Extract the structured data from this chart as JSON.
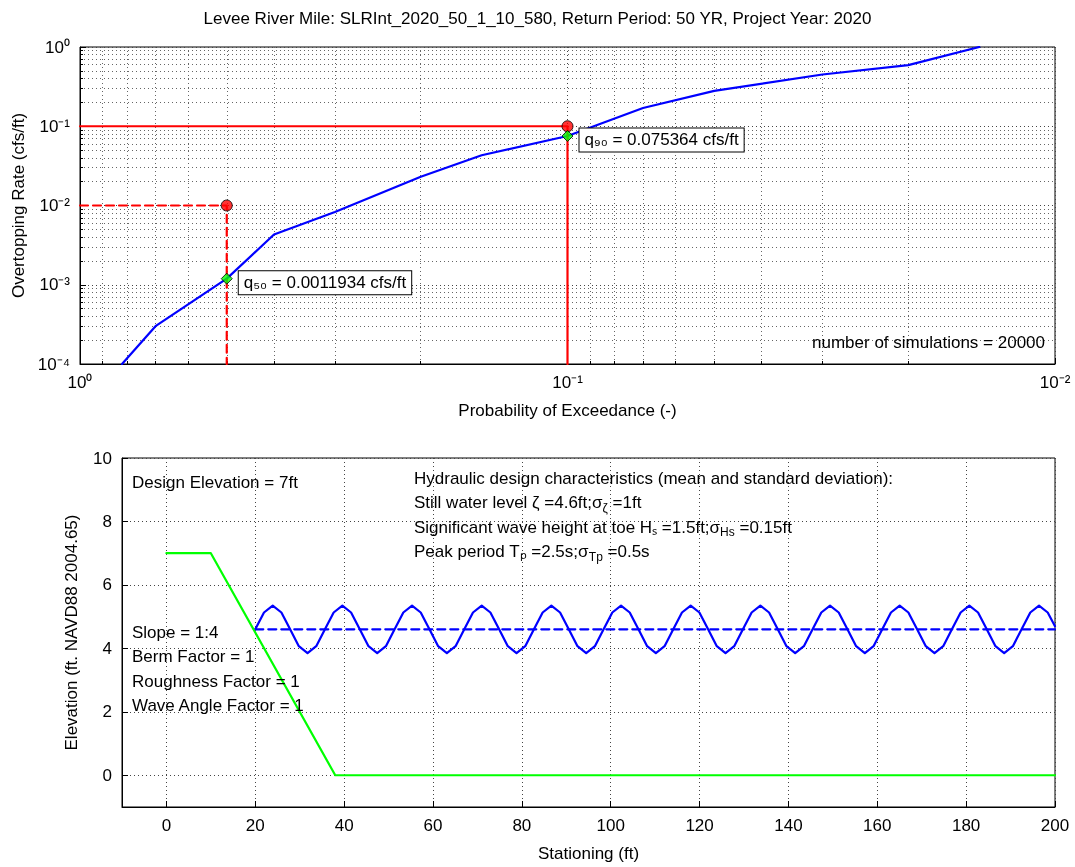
{
  "chart_data": [
    {
      "type": "line",
      "title": "Levee River Mile: SLRInt_2020_50_1_10_580, Return Period: 50 YR, Project Year: 2020",
      "xlabel": "Probability of Exceedance (-)",
      "ylabel": "Overtopping Rate (cfs/ft)",
      "log": "xy",
      "grid": true,
      "xlim": [
        1,
        0.01
      ],
      "xticks": [
        {
          "value": 1,
          "label": "10⁰"
        },
        {
          "value": 0.1,
          "label": "10⁻¹"
        },
        {
          "value": 0.01,
          "label": "10⁻²"
        }
      ],
      "ylim": [
        0.0001,
        1
      ],
      "yticks": [
        {
          "value": 0.0001,
          "label": "10⁻⁴"
        },
        {
          "value": 0.001,
          "label": "10⁻³"
        },
        {
          "value": 0.01,
          "label": "10⁻²"
        },
        {
          "value": 0.1,
          "label": "10⁻¹"
        },
        {
          "value": 1,
          "label": "10⁰"
        }
      ],
      "series": [
        {
          "type": "line",
          "color": "#0000ff",
          "marker": "none",
          "line_style": "solid",
          "x": [
            0.82,
            0.7,
            0.5,
            0.4,
            0.3,
            0.2,
            0.15,
            0.1,
            0.07,
            0.05,
            0.03,
            0.02,
            0.0143
          ],
          "values": [
            0.0001,
            0.0003,
            0.0011934,
            0.0043,
            0.0083,
            0.023,
            0.043,
            0.075364,
            0.17,
            0.28,
            0.45,
            0.59,
            1
          ]
        },
        {
          "type": "line",
          "color": "#ff0000",
          "marker": "none",
          "line_style": "solid",
          "x": [
            1,
            0.1,
            0.1
          ],
          "values": [
            0.1,
            0.1,
            0.0001
          ]
        },
        {
          "type": "line",
          "color": "#ff0000",
          "marker": "none",
          "line_style": "dashed",
          "x": [
            1,
            0.5,
            0.5
          ],
          "values": [
            0.01,
            0.01,
            0.0001
          ]
        },
        {
          "type": "scatter",
          "color": "#ff0000",
          "marker": "circle",
          "x": [
            0.5,
            0.1
          ],
          "values": [
            0.01,
            0.1
          ]
        },
        {
          "type": "scatter",
          "color": "#00ff00",
          "marker": "diamond",
          "x": [
            0.5,
            0.1
          ],
          "values": [
            0.0011934,
            0.075364
          ]
        }
      ],
      "annotations": [
        {
          "text": "q₅₀ = 0.0011934 cfs/ft",
          "x": 0.5,
          "y": 0.0011934
        },
        {
          "text": "q₉₀ = 0.075364 cfs/ft",
          "x": 0.1,
          "y": 0.075364
        },
        "number of simulations = 20000"
      ]
    },
    {
      "type": "line",
      "xlabel": "Stationing (ft)",
      "ylabel": "Elevation (ft. NAVD88 2004.65)",
      "grid": true,
      "xlim": [
        -10,
        200
      ],
      "xticks": [
        0,
        20,
        40,
        60,
        80,
        100,
        120,
        140,
        160,
        180,
        200
      ],
      "ylim": [
        -1,
        10
      ],
      "yticks": [
        0,
        2,
        4,
        6,
        8,
        10
      ],
      "series": [
        {
          "type": "line",
          "color": "#0000ff",
          "marker": "none",
          "line_style": "solid",
          "x": [
            20,
            21.96,
            23.92,
            25.88,
            27.84,
            29.8,
            31.76,
            33.72,
            35.68,
            37.64,
            39.6,
            41.56,
            43.52,
            45.48,
            47.44,
            49.4,
            51.36,
            53.32,
            55.28,
            57.24,
            59.2,
            61.16,
            63.12,
            65.08,
            67.04,
            69,
            70.96,
            72.92,
            74.88,
            76.84,
            78.8,
            80.76,
            82.72,
            84.68,
            86.64,
            88.6,
            90.56,
            92.52,
            94.48,
            96.44,
            98.4,
            100.36,
            102.32,
            104.28,
            106.24,
            108.2,
            110.16,
            112.12,
            114.08,
            116.04,
            118,
            119.96,
            121.92,
            123.88,
            125.84,
            127.8,
            129.76,
            131.72,
            133.68,
            135.64,
            137.6,
            139.56,
            141.52,
            143.48,
            145.44,
            147.4,
            149.36,
            151.32,
            153.28,
            155.24,
            157.2,
            159.16,
            161.12,
            163.08,
            165.04,
            167,
            168.96,
            170.92,
            172.88,
            174.84,
            176.8,
            178.76,
            180.72,
            182.68,
            184.64,
            186.6,
            188.56,
            190.52,
            192.48,
            194.44,
            196.4,
            198.36,
            200
          ],
          "values": [
            4.6,
            5.13,
            5.35,
            5.13,
            4.6,
            4.07,
            3.85,
            4.07,
            4.6,
            5.13,
            5.35,
            5.13,
            4.6,
            4.07,
            3.85,
            4.07,
            4.6,
            5.13,
            5.35,
            5.13,
            4.6,
            4.07,
            3.85,
            4.07,
            4.6,
            5.13,
            5.35,
            5.13,
            4.6,
            4.07,
            3.85,
            4.07,
            4.6,
            5.13,
            5.35,
            5.13,
            4.6,
            4.07,
            3.85,
            4.07,
            4.6,
            5.13,
            5.35,
            5.13,
            4.6,
            4.07,
            3.85,
            4.07,
            4.6,
            5.13,
            5.35,
            5.13,
            4.6,
            4.07,
            3.85,
            4.07,
            4.6,
            5.13,
            5.35,
            5.13,
            4.6,
            4.07,
            3.85,
            4.07,
            4.6,
            5.13,
            5.35,
            5.13,
            4.6,
            4.07,
            3.85,
            4.07,
            4.6,
            5.13,
            5.35,
            5.13,
            4.6,
            4.07,
            3.85,
            4.07,
            4.6,
            5.13,
            5.35,
            5.13,
            4.6,
            4.07,
            3.85,
            4.07,
            4.6,
            5.13,
            5.35,
            5.13,
            4.7
          ]
        },
        {
          "type": "line",
          "color": "#0000ff",
          "marker": "none",
          "line_style": "dashed",
          "x": [
            20,
            200
          ],
          "values": [
            4.6,
            4.6
          ]
        },
        {
          "type": "line",
          "color": "#00ff00",
          "marker": "none",
          "line_style": "solid",
          "x": [
            0,
            10,
            38,
            200
          ],
          "values": [
            7,
            7,
            0,
            0
          ]
        }
      ],
      "annotations": [
        "Design Elevation = 7ft",
        "Slope = 1:4",
        "Berm Factor = 1",
        "Roughness Factor = 1",
        "Wave Angle Factor = 1",
        "Hydraulic design characteristics (mean and standard deviation):",
        "Still water level ζ =4.6ft;σ$_{ζ}$ =1ft",
        "Significant wave height at toe Hₛ =1.5ft;σ$_{Hs}$ =0.15ft",
        "Peak period Tₚ =2.5s;σ$_{Tp}$ =0.5s"
      ]
    }
  ]
}
